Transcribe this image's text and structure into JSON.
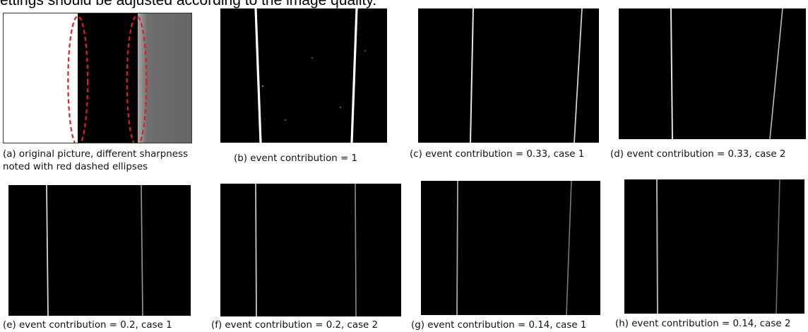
{
  "header": {
    "text": "ettings should be adjusted according to the image quality."
  },
  "panels": [
    {
      "id": "a",
      "caption_lines": [
        "(a) original picture, different sharpness",
        "noted with red dashed ellipses"
      ]
    },
    {
      "id": "b",
      "caption_lines": [
        "(b) event contribution = 1"
      ]
    },
    {
      "id": "c",
      "caption_lines": [
        "(c) event contribution = 0.33, case 1"
      ]
    },
    {
      "id": "d",
      "caption_lines": [
        "(d) event contribution = 0.33, case 2"
      ]
    },
    {
      "id": "e",
      "caption_lines": [
        "(e) event contribution = 0.2, case 1"
      ]
    },
    {
      "id": "f",
      "caption_lines": [
        "(f) event contribution = 0.2, case 2"
      ]
    },
    {
      "id": "g",
      "caption_lines": [
        "(g) event contribution = 0.14, case 1"
      ]
    },
    {
      "id": "h",
      "caption_lines": [
        "(h) event contribution = 0.14, case 2"
      ]
    }
  ],
  "colors": {
    "ellipse": "#e02020",
    "event_line": "#ffffff",
    "background": "#000000"
  }
}
